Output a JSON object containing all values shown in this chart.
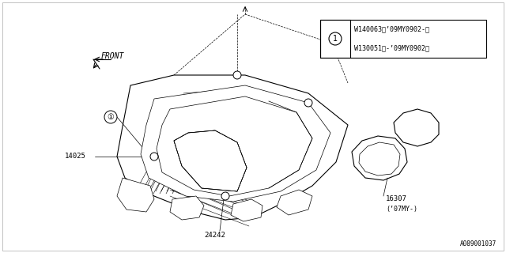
{
  "background_color": "#ffffff",
  "line_color": "#000000",
  "watermark": "A089001037",
  "fig_width": 6.4,
  "fig_height": 3.2,
  "dpi": 100,
  "legend_text1": "W130051（-’09MY0902）",
  "legend_text2": "W140063（’09MY0902-）",
  "label_14025": "14025",
  "label_24242": "24242",
  "label_16307": "16307",
  "label_16307_note": "(’07MY-)",
  "label_front": "FRONT"
}
